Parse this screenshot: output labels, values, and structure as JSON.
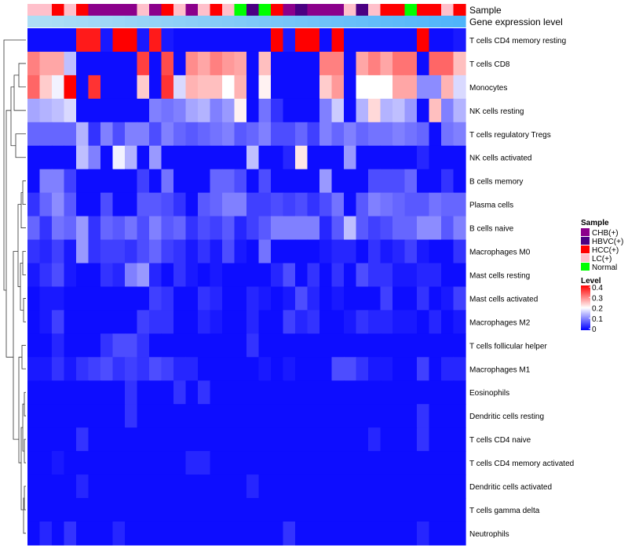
{
  "chart_data": {
    "type": "heatmap",
    "title": "",
    "annotation_tracks": [
      "Sample",
      "Gene expression level"
    ],
    "sample_track": [
      "LC(+)",
      "LC(+)",
      "HCC(+)",
      "LC(+)",
      "HCC(+)",
      "CHB(+)",
      "CHB(+)",
      "CHB(+)",
      "CHB(+)",
      "LC(+)",
      "CHB(+)",
      "HCC(+)",
      "LC(+)",
      "CHB(+)",
      "LC(+)",
      "HCC(+)",
      "LC(+)",
      "Normal",
      "HBVC(+)",
      "Normal",
      "HCC(+)",
      "CHB(+)",
      "HBVC(+)",
      "CHB(+)",
      "CHB(+)",
      "CHB(+)",
      "LC(+)",
      "HBVC(+)",
      "LC(+)",
      "HCC(+)",
      "HCC(+)",
      "Normal",
      "HCC(+)",
      "HCC(+)",
      "LC(+)",
      "HCC(+)"
    ],
    "sample_legend": {
      "title": "Sample",
      "items": [
        {
          "label": "CHB(+)",
          "color": "#8b008b"
        },
        {
          "label": "HBVC(+)",
          "color": "#4b0082"
        },
        {
          "label": "HCC(+)",
          "color": "#ff0000"
        },
        {
          "label": "LC(+)",
          "color": "#ffc0cb"
        },
        {
          "label": "Normal",
          "color": "#00ff00"
        }
      ]
    },
    "level_legend": {
      "title": "Level",
      "ticks": [
        "0.4",
        "0.3",
        "0.2",
        "0.1",
        "0"
      ],
      "colors": [
        "#0000ff",
        "#ffffff",
        "#ff0000"
      ]
    },
    "gene_expression_color": "#87cefa",
    "value_range": [
      0,
      0.4
    ],
    "rows": [
      "T cells CD4 memory resting",
      "T cells CD8",
      "Monocytes",
      "NK cells resting",
      "T cells regulatory  Tregs",
      "NK cells activated",
      "B cells memory",
      "Plasma cells",
      "B cells naive",
      "Macrophages M0",
      "Mast cells resting",
      "Mast cells activated",
      "Macrophages M2",
      "T cells follicular helper",
      "Macrophages M1",
      "Eosinophils",
      "Dendritic cells resting",
      "T cells CD4 naive",
      "T cells CD4 memory activated",
      "Dendritic cells activated",
      "T cells gamma delta",
      "Neutrophils"
    ],
    "n_samples": 36,
    "values": [
      [
        0.01,
        0.01,
        0.01,
        0.01,
        0.38,
        0.38,
        0.02,
        0.4,
        0.4,
        0.02,
        0.38,
        0.02,
        0.01,
        0.01,
        0.01,
        0.01,
        0.01,
        0.01,
        0.01,
        0.01,
        0.4,
        0.02,
        0.4,
        0.4,
        0.01,
        0.4,
        0.01,
        0.01,
        0.01,
        0.01,
        0.01,
        0.01,
        0.4,
        0.01,
        0.01,
        0.02
      ],
      [
        0.3,
        0.27,
        0.27,
        0.15,
        0.01,
        0.01,
        0.01,
        0.01,
        0.01,
        0.35,
        0.01,
        0.34,
        0.01,
        0.29,
        0.27,
        0.3,
        0.28,
        0.27,
        0.01,
        0.25,
        0.01,
        0.01,
        0.01,
        0.01,
        0.3,
        0.3,
        0.01,
        0.27,
        0.3,
        0.27,
        0.31,
        0.31,
        0.01,
        0.32,
        0.32,
        0.25
      ],
      [
        0.32,
        0.24,
        0.19,
        0.4,
        0.01,
        0.36,
        0.01,
        0.01,
        0.01,
        0.24,
        0.01,
        0.36,
        0.17,
        0.26,
        0.25,
        0.25,
        0.2,
        0.26,
        0.01,
        0.21,
        0.01,
        0.01,
        0.01,
        0.01,
        0.24,
        0.28,
        0.01,
        0.2,
        0.2,
        0.2,
        0.27,
        0.27,
        0.11,
        0.11,
        0.26,
        0.17
      ],
      [
        0.13,
        0.14,
        0.15,
        0.17,
        0.01,
        0.01,
        0.01,
        0.01,
        0.01,
        0.01,
        0.1,
        0.09,
        0.1,
        0.13,
        0.14,
        0.1,
        0.12,
        0.21,
        0.01,
        0.09,
        0.04,
        0.01,
        0.01,
        0.01,
        0.1,
        0.16,
        0.01,
        0.14,
        0.23,
        0.14,
        0.15,
        0.12,
        0.01,
        0.25,
        0.1,
        0.14
      ],
      [
        0.08,
        0.08,
        0.08,
        0.08,
        0.14,
        0.04,
        0.1,
        0.06,
        0.1,
        0.1,
        0.06,
        0.1,
        0.08,
        0.07,
        0.08,
        0.09,
        0.1,
        0.07,
        0.08,
        0.1,
        0.06,
        0.06,
        0.08,
        0.05,
        0.1,
        0.08,
        0.1,
        0.08,
        0.09,
        0.09,
        0.1,
        0.09,
        0.08,
        0.01,
        0.09,
        0.1
      ],
      [
        0.01,
        0.01,
        0.01,
        0.01,
        0.15,
        0.1,
        0.01,
        0.19,
        0.14,
        0.01,
        0.12,
        0.01,
        0.01,
        0.01,
        0.01,
        0.01,
        0.01,
        0.01,
        0.15,
        0.01,
        0.01,
        0.03,
        0.22,
        0.01,
        0.01,
        0.01,
        0.12,
        0.01,
        0.01,
        0.01,
        0.01,
        0.01,
        0.03,
        0.01,
        0.01,
        0.01
      ],
      [
        0.01,
        0.1,
        0.1,
        0.05,
        0.01,
        0.01,
        0.01,
        0.01,
        0.01,
        0.05,
        0.01,
        0.09,
        0.01,
        0.01,
        0.01,
        0.08,
        0.08,
        0.06,
        0.01,
        0.06,
        0.01,
        0.01,
        0.01,
        0.01,
        0.12,
        0.01,
        0.01,
        0.01,
        0.06,
        0.06,
        0.06,
        0.08,
        0.01,
        0.01,
        0.04,
        0.01
      ],
      [
        0.04,
        0.08,
        0.11,
        0.07,
        0.01,
        0.01,
        0.06,
        0.01,
        0.01,
        0.07,
        0.07,
        0.06,
        0.04,
        0.01,
        0.07,
        0.08,
        0.1,
        0.1,
        0.05,
        0.05,
        0.06,
        0.05,
        0.06,
        0.04,
        0.06,
        0.09,
        0.01,
        0.07,
        0.1,
        0.09,
        0.08,
        0.07,
        0.07,
        0.09,
        0.08,
        0.08
      ],
      [
        0.08,
        0.04,
        0.09,
        0.08,
        0.12,
        0.04,
        0.08,
        0.07,
        0.09,
        0.06,
        0.1,
        0.07,
        0.08,
        0.04,
        0.06,
        0.05,
        0.07,
        0.03,
        0.05,
        0.07,
        0.1,
        0.1,
        0.1,
        0.1,
        0.03,
        0.07,
        0.15,
        0.07,
        0.05,
        0.06,
        0.08,
        0.08,
        0.11,
        0.11,
        0.07,
        0.1
      ],
      [
        0.04,
        0.03,
        0.05,
        0.02,
        0.12,
        0.04,
        0.05,
        0.05,
        0.04,
        0.06,
        0.08,
        0.05,
        0.04,
        0.02,
        0.04,
        0.02,
        0.06,
        0.02,
        0.01,
        0.09,
        0.01,
        0.01,
        0.01,
        0.01,
        0.02,
        0.03,
        0.03,
        0.01,
        0.04,
        0.02,
        0.03,
        0.05,
        0.02,
        0.01,
        0.01,
        0.04
      ],
      [
        0.02,
        0.04,
        0.06,
        0.02,
        0.01,
        0.01,
        0.04,
        0.03,
        0.1,
        0.12,
        0.03,
        0.01,
        0.04,
        0.02,
        0.01,
        0.02,
        0.01,
        0.01,
        0.01,
        0.01,
        0.03,
        0.06,
        0.01,
        0.04,
        0.01,
        0.04,
        0.01,
        0.06,
        0.04,
        0.04,
        0.02,
        0.02,
        0.03,
        0.03,
        0.01,
        0.01
      ],
      [
        0.01,
        0.02,
        0.02,
        0.01,
        0.01,
        0.01,
        0.01,
        0.01,
        0.01,
        0.01,
        0.05,
        0.04,
        0.01,
        0.01,
        0.04,
        0.03,
        0.01,
        0.01,
        0.03,
        0.02,
        0.01,
        0.02,
        0.06,
        0.03,
        0.01,
        0.02,
        0.01,
        0.01,
        0.01,
        0.05,
        0.01,
        0.01,
        0.04,
        0.01,
        0.02,
        0.05
      ],
      [
        0.01,
        0.02,
        0.05,
        0.01,
        0.01,
        0.01,
        0.01,
        0.01,
        0.01,
        0.05,
        0.04,
        0.04,
        0.01,
        0.01,
        0.03,
        0.02,
        0.01,
        0.01,
        0.03,
        0.01,
        0.01,
        0.05,
        0.03,
        0.04,
        0.01,
        0.01,
        0.02,
        0.04,
        0.03,
        0.03,
        0.02,
        0.02,
        0.01,
        0.03,
        0.01,
        0.02
      ],
      [
        0.01,
        0.01,
        0.03,
        0.01,
        0.01,
        0.01,
        0.04,
        0.06,
        0.06,
        0.04,
        0.01,
        0.01,
        0.01,
        0.01,
        0.01,
        0.01,
        0.01,
        0.01,
        0.04,
        0.01,
        0.01,
        0.01,
        0.01,
        0.01,
        0.01,
        0.01,
        0.01,
        0.01,
        0.01,
        0.01,
        0.01,
        0.01,
        0.01,
        0.01,
        0.01,
        0.01
      ],
      [
        0.02,
        0.02,
        0.04,
        0.02,
        0.04,
        0.05,
        0.06,
        0.04,
        0.05,
        0.04,
        0.06,
        0.05,
        0.03,
        0.03,
        0.01,
        0.01,
        0.01,
        0.01,
        0.01,
        0.02,
        0.01,
        0.02,
        0.01,
        0.01,
        0.01,
        0.06,
        0.06,
        0.04,
        0.02,
        0.02,
        0.01,
        0.01,
        0.05,
        0.01,
        0.03,
        0.03
      ],
      [
        0.01,
        0.01,
        0.01,
        0.01,
        0.01,
        0.01,
        0.01,
        0.01,
        0.04,
        0.01,
        0.01,
        0.01,
        0.04,
        0.01,
        0.04,
        0.01,
        0.01,
        0.01,
        0.01,
        0.01,
        0.01,
        0.01,
        0.01,
        0.01,
        0.01,
        0.01,
        0.01,
        0.01,
        0.01,
        0.01,
        0.01,
        0.01,
        0.01,
        0.01,
        0.01,
        0.01
      ],
      [
        0.01,
        0.01,
        0.01,
        0.01,
        0.01,
        0.01,
        0.01,
        0.01,
        0.04,
        0.01,
        0.01,
        0.01,
        0.01,
        0.01,
        0.01,
        0.01,
        0.01,
        0.01,
        0.01,
        0.01,
        0.01,
        0.01,
        0.01,
        0.01,
        0.01,
        0.01,
        0.01,
        0.01,
        0.01,
        0.01,
        0.01,
        0.01,
        0.04,
        0.01,
        0.01,
        0.01
      ],
      [
        0.01,
        0.01,
        0.01,
        0.01,
        0.04,
        0.01,
        0.01,
        0.01,
        0.01,
        0.01,
        0.01,
        0.01,
        0.01,
        0.01,
        0.01,
        0.01,
        0.01,
        0.01,
        0.01,
        0.01,
        0.01,
        0.01,
        0.01,
        0.01,
        0.01,
        0.01,
        0.01,
        0.01,
        0.03,
        0.01,
        0.01,
        0.01,
        0.04,
        0.01,
        0.01,
        0.01
      ],
      [
        0.01,
        0.01,
        0.02,
        0.01,
        0.01,
        0.01,
        0.01,
        0.01,
        0.01,
        0.01,
        0.01,
        0.01,
        0.01,
        0.03,
        0.03,
        0.01,
        0.01,
        0.01,
        0.01,
        0.01,
        0.01,
        0.01,
        0.01,
        0.01,
        0.01,
        0.01,
        0.01,
        0.01,
        0.01,
        0.01,
        0.01,
        0.01,
        0.01,
        0.01,
        0.01,
        0.01
      ],
      [
        0.01,
        0.01,
        0.01,
        0.01,
        0.03,
        0.01,
        0.01,
        0.01,
        0.01,
        0.01,
        0.01,
        0.01,
        0.01,
        0.01,
        0.01,
        0.01,
        0.01,
        0.01,
        0.03,
        0.01,
        0.01,
        0.01,
        0.01,
        0.01,
        0.01,
        0.01,
        0.01,
        0.01,
        0.01,
        0.01,
        0.01,
        0.01,
        0.01,
        0.01,
        0.01,
        0.01
      ],
      [
        0.01,
        0.01,
        0.01,
        0.01,
        0.01,
        0.01,
        0.01,
        0.01,
        0.01,
        0.01,
        0.01,
        0.01,
        0.01,
        0.01,
        0.01,
        0.01,
        0.01,
        0.01,
        0.01,
        0.01,
        0.01,
        0.01,
        0.01,
        0.01,
        0.01,
        0.01,
        0.01,
        0.01,
        0.01,
        0.01,
        0.01,
        0.01,
        0.01,
        0.01,
        0.01,
        0.01
      ],
      [
        0.01,
        0.03,
        0.01,
        0.04,
        0.01,
        0.01,
        0.01,
        0.03,
        0.01,
        0.01,
        0.01,
        0.01,
        0.01,
        0.01,
        0.01,
        0.01,
        0.01,
        0.01,
        0.01,
        0.01,
        0.01,
        0.04,
        0.01,
        0.01,
        0.01,
        0.01,
        0.01,
        0.01,
        0.01,
        0.01,
        0.01,
        0.01,
        0.03,
        0.01,
        0.01,
        0.01
      ]
    ]
  }
}
